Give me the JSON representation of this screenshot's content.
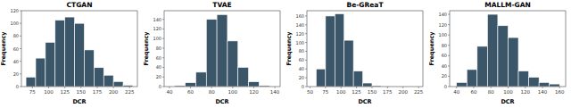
{
  "chart_data": [
    {
      "type": "histogram",
      "title": "CTGAN",
      "x_label": "DCR",
      "y_label": "Frequency",
      "color": "#3b5569",
      "bins": [
        65,
        80,
        95,
        110,
        125,
        140,
        155,
        170,
        185,
        200,
        215,
        230
      ],
      "values": [
        15,
        45,
        70,
        105,
        110,
        100,
        58,
        30,
        18,
        8,
        2
      ],
      "xlim": [
        58,
        237
      ],
      "ylim": [
        0,
        120
      ],
      "xticks": [
        75,
        100,
        125,
        150,
        175,
        200,
        225
      ],
      "yticks": [
        0,
        20,
        40,
        60,
        80,
        100,
        120
      ]
    },
    {
      "type": "histogram",
      "title": "TVAE",
      "x_label": "DCR",
      "y_label": "Frequency",
      "color": "#3b5569",
      "bins": [
        45,
        55,
        65,
        75,
        85,
        95,
        105,
        115,
        125,
        135
      ],
      "values": [
        2,
        8,
        30,
        140,
        150,
        95,
        40,
        10,
        2
      ],
      "xlim": [
        35,
        145
      ],
      "ylim": [
        0,
        158
      ],
      "xticks": [
        40,
        60,
        80,
        100,
        120,
        140
      ],
      "yticks": [
        0,
        20,
        40,
        60,
        80,
        100,
        120,
        140
      ]
    },
    {
      "type": "histogram",
      "title": "Be-GReaT",
      "x_label": "DCR",
      "y_label": "Frequency",
      "color": "#3b5569",
      "bins": [
        60,
        75,
        90,
        105,
        120,
        135,
        150,
        165,
        180
      ],
      "values": [
        40,
        160,
        165,
        105,
        35,
        8,
        2,
        1
      ],
      "xlim": [
        45,
        232
      ],
      "ylim": [
        0,
        172
      ],
      "xticks": [
        50,
        75,
        100,
        125,
        150,
        175,
        200,
        225
      ],
      "yticks": [
        0,
        20,
        40,
        60,
        80,
        100,
        120,
        140,
        160
      ]
    },
    {
      "type": "histogram",
      "title": "MALLM-GAN",
      "x_label": "DCR",
      "y_label": "Frequency",
      "color": "#3b5569",
      "bins": [
        40,
        52,
        64,
        76,
        88,
        100,
        112,
        124,
        136,
        148,
        160
      ],
      "values": [
        8,
        33,
        78,
        140,
        118,
        95,
        30,
        18,
        8,
        5
      ],
      "xlim": [
        32,
        167
      ],
      "ylim": [
        0,
        147
      ],
      "xticks": [
        40,
        60,
        80,
        100,
        120,
        140,
        160
      ],
      "yticks": [
        0,
        20,
        40,
        60,
        80,
        100,
        120,
        140
      ]
    }
  ]
}
